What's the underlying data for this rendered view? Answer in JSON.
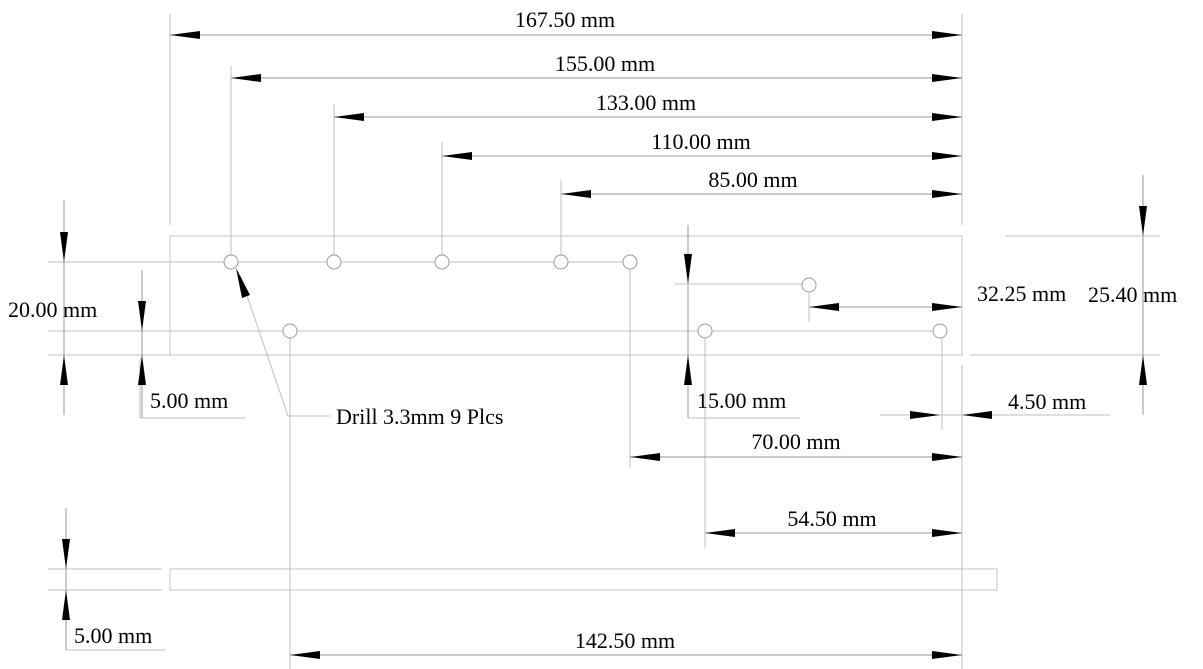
{
  "dimensions": {
    "overall_length": "167.50 mm",
    "hole1_offset": "155.00 mm",
    "hole2_offset": "133.00 mm",
    "hole3_offset": "110.00 mm",
    "hole4_offset": "85.00 mm",
    "hole_row_spacing": "20.00 mm",
    "bottom_row_margin": "5.00 mm",
    "drill_note": "Drill 3.3mm 9 Plcs",
    "hole_step_offset": "32.25 mm",
    "plate_width": "25.40 mm",
    "step_height": "15.00 mm",
    "edge_offset": "4.50 mm",
    "hole5_offset": "70.00 mm",
    "hole6_offset": "54.50 mm",
    "thickness": "5.00 mm",
    "bottom_hole_offset": "142.50 mm"
  }
}
